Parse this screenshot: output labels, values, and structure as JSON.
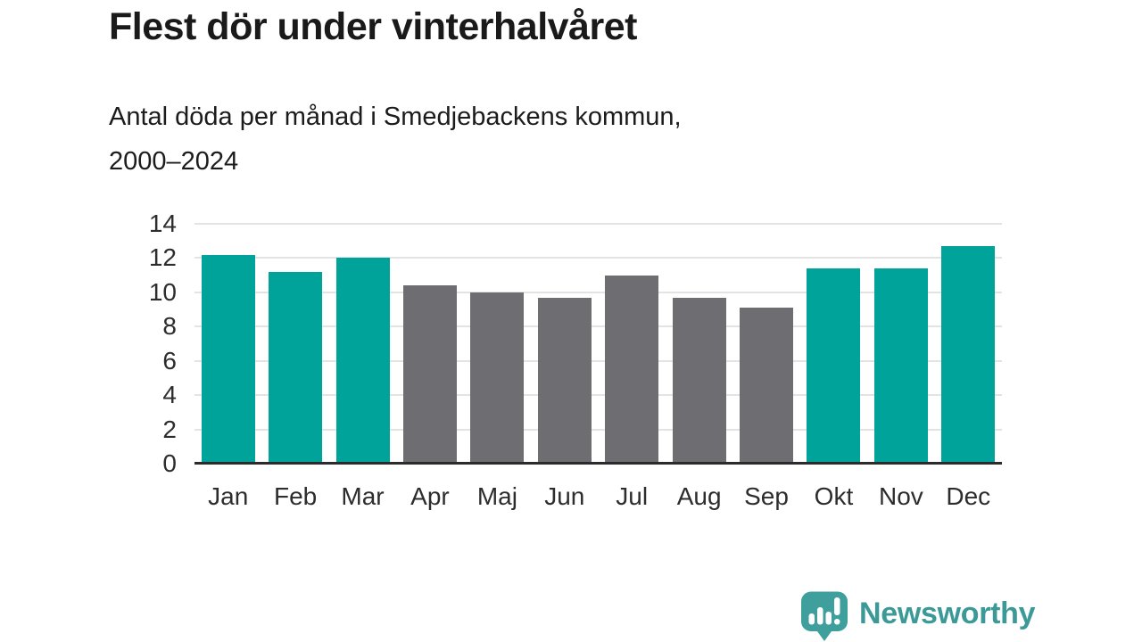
{
  "title": "Flest dör under vinterhalvåret",
  "subtitle": {
    "line1": "Antal döda per månad i Smedjebackens kommun,",
    "line2": "2000–2024"
  },
  "branding": {
    "logo_text": "Newsworthy",
    "logo_icon": "bar-chart-speech-bubble-icon"
  },
  "colors": {
    "winter_bar": "#00a39a",
    "summer_bar": "#6e6e72",
    "gridline": "#e3e3e3",
    "axis_line": "#2b2b2b",
    "title_text": "#1a1a1a",
    "tick_text": "#2d2d2d",
    "logo_teal": "#3b9a98"
  },
  "chart_data": {
    "type": "bar",
    "title": "Flest dör under vinterhalvåret",
    "subtitle": "Antal döda per månad i Smedjebackens kommun, 2000–2024",
    "categories": [
      "Jan",
      "Feb",
      "Mar",
      "Apr",
      "Maj",
      "Jun",
      "Jul",
      "Aug",
      "Sep",
      "Okt",
      "Nov",
      "Dec"
    ],
    "values": [
      12.2,
      11.2,
      12.0,
      10.4,
      10.0,
      9.7,
      11.0,
      9.7,
      9.1,
      11.4,
      11.4,
      12.7
    ],
    "highlighted_categories": [
      "Jan",
      "Feb",
      "Mar",
      "Okt",
      "Nov",
      "Dec"
    ],
    "highlight_meaning": "winter half-year months (teal), other months gray",
    "xlabel": "",
    "ylabel": "",
    "ylim": [
      0,
      14
    ],
    "yticks": [
      0,
      2,
      4,
      6,
      8,
      10,
      12,
      14
    ],
    "grid": true,
    "legend": false
  }
}
